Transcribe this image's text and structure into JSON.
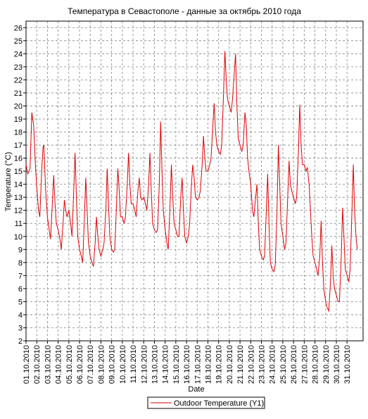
{
  "chart_data": {
    "type": "line",
    "title": "Температура в Севастополе - данные за октябрь 2010 года",
    "xlabel": "Date",
    "ylabel": "Temperature (°C)",
    "ylim": [
      2,
      26.5
    ],
    "xlim_days": [
      0,
      31.5
    ],
    "grid": true,
    "legend_position": "bottom-center",
    "y_ticks": [
      2,
      3,
      4,
      5,
      6,
      7,
      8,
      9,
      10,
      11,
      12,
      13,
      14,
      15,
      16,
      17,
      18,
      19,
      20,
      21,
      22,
      23,
      24,
      25,
      26
    ],
    "x_tick_labels": [
      "01.10.2010",
      "02.10.2010",
      "03.10.2010",
      "04.10.2010",
      "05.10.2010",
      "06.10.2010",
      "07.10.2010",
      "08.10.2010",
      "09.10.2010",
      "10.10.2010",
      "11.10.2010",
      "12.10.2010",
      "13.10.2010",
      "14.10.2010",
      "15.10.2010",
      "16.10.2010",
      "17.10.2010",
      "18.10.2010",
      "19.10.2010",
      "20.10.2010",
      "21.10.2010",
      "22.10.2010",
      "23.10.2010",
      "24.10.2010",
      "25.10.2010",
      "26.10.2010",
      "27.10.2010",
      "28.10.2010",
      "29.10.2010",
      "30.10.2010",
      "31.10.2010"
    ],
    "series": [
      {
        "name": "Outdoor Temperature (Y1)",
        "color": "#e00000",
        "points": [
          [
            "01.10.2010 00:00",
            15.5
          ],
          [
            "01.10.2010 04:00",
            14.8
          ],
          [
            "01.10.2010 09:00",
            15.2
          ],
          [
            "01.10.2010 13:00",
            19.5
          ],
          [
            "01.10.2010 17:00",
            18.5
          ],
          [
            "01.10.2010 21:00",
            15.5
          ],
          [
            "02.10.2010 00:00",
            13.8
          ],
          [
            "02.10.2010 04:00",
            12.0
          ],
          [
            "02.10.2010 07:00",
            11.5
          ],
          [
            "02.10.2010 11:00",
            15.0
          ],
          [
            "02.10.2010 14:00",
            16.8
          ],
          [
            "02.10.2010 16:00",
            17.0
          ],
          [
            "02.10.2010 20:00",
            13.5
          ],
          [
            "03.10.2010 00:00",
            11.5
          ],
          [
            "03.10.2010 04:00",
            10.5
          ],
          [
            "03.10.2010 07:00",
            9.8
          ],
          [
            "03.10.2010 11:00",
            12.5
          ],
          [
            "03.10.2010 14:00",
            14.7
          ],
          [
            "03.10.2010 17:00",
            12.5
          ],
          [
            "03.10.2010 20:00",
            11.0
          ],
          [
            "04.10.2010 00:00",
            10.5
          ],
          [
            "04.10.2010 04:00",
            9.8
          ],
          [
            "04.10.2010 07:00",
            9.0
          ],
          [
            "04.10.2010 11:00",
            11.0
          ],
          [
            "04.10.2010 14:00",
            12.8
          ],
          [
            "04.10.2010 17:00",
            12.0
          ],
          [
            "04.10.2010 20:00",
            11.5
          ],
          [
            "05.10.2010 00:00",
            12.0
          ],
          [
            "05.10.2010 04:00",
            11.0
          ],
          [
            "05.10.2010 07:00",
            10.0
          ],
          [
            "05.10.2010 11:00",
            13.5
          ],
          [
            "05.10.2010 14:00",
            16.4
          ],
          [
            "05.10.2010 17:00",
            13.0
          ],
          [
            "05.10.2010 20:00",
            10.0
          ],
          [
            "06.10.2010 00:00",
            9.0
          ],
          [
            "06.10.2010 04:00",
            8.5
          ],
          [
            "06.10.2010 07:00",
            8.0
          ],
          [
            "06.10.2010 11:00",
            11.5
          ],
          [
            "06.10.2010 14:00",
            14.5
          ],
          [
            "06.10.2010 17:00",
            12.0
          ],
          [
            "06.10.2010 20:00",
            9.5
          ],
          [
            "07.10.2010 00:00",
            8.5
          ],
          [
            "07.10.2010 04:00",
            8.0
          ],
          [
            "07.10.2010 07:00",
            7.7
          ],
          [
            "07.10.2010 11:00",
            9.5
          ],
          [
            "07.10.2010 14:00",
            11.5
          ],
          [
            "07.10.2010 17:00",
            10.0
          ],
          [
            "07.10.2010 20:00",
            9.0
          ],
          [
            "08.10.2010 00:00",
            8.5
          ],
          [
            "08.10.2010 04:00",
            9.0
          ],
          [
            "08.10.2010 07:00",
            9.5
          ],
          [
            "08.10.2010 11:00",
            12.0
          ],
          [
            "08.10.2010 14:00",
            15.2
          ],
          [
            "08.10.2010 17:00",
            12.5
          ],
          [
            "08.10.2010 20:00",
            10.0
          ],
          [
            "09.10.2010 00:00",
            9.0
          ],
          [
            "09.10.2010 04:00",
            8.8
          ],
          [
            "09.10.2010 07:00",
            9.0
          ],
          [
            "09.10.2010 11:00",
            12.5
          ],
          [
            "09.10.2010 14:00",
            15.2
          ],
          [
            "09.10.2010 17:00",
            13.5
          ],
          [
            "09.10.2010 20:00",
            11.5
          ],
          [
            "10.10.2010 00:00",
            11.5
          ],
          [
            "10.10.2010 04:00",
            11.0
          ],
          [
            "10.10.2010 07:00",
            11.5
          ],
          [
            "10.10.2010 11:00",
            14.0
          ],
          [
            "10.10.2010 14:00",
            16.4
          ],
          [
            "10.10.2010 17:00",
            14.0
          ],
          [
            "10.10.2010 20:00",
            12.5
          ],
          [
            "11.10.2010 00:00",
            12.5
          ],
          [
            "11.10.2010 04:00",
            12.0
          ],
          [
            "11.10.2010 07:00",
            11.5
          ],
          [
            "11.10.2010 11:00",
            13.5
          ],
          [
            "11.10.2010 14:00",
            14.5
          ],
          [
            "11.10.2010 17:00",
            13.0
          ],
          [
            "11.10.2010 20:00",
            12.8
          ],
          [
            "12.10.2010 00:00",
            13.0
          ],
          [
            "12.10.2010 04:00",
            12.5
          ],
          [
            "12.10.2010 07:00",
            12.0
          ],
          [
            "12.10.2010 11:00",
            14.0
          ],
          [
            "12.10.2010 14:00",
            16.4
          ],
          [
            "12.10.2010 17:00",
            13.5
          ],
          [
            "12.10.2010 20:00",
            11.0
          ],
          [
            "13.10.2010 00:00",
            10.5
          ],
          [
            "13.10.2010 04:00",
            10.3
          ],
          [
            "13.10.2010 07:00",
            10.5
          ],
          [
            "13.10.2010 11:00",
            14.0
          ],
          [
            "13.10.2010 14:00",
            18.8
          ],
          [
            "13.10.2010 17:00",
            15.0
          ],
          [
            "13.10.2010 20:00",
            12.0
          ],
          [
            "14.10.2010 00:00",
            10.5
          ],
          [
            "14.10.2010 04:00",
            9.5
          ],
          [
            "14.10.2010 07:00",
            9.0
          ],
          [
            "14.10.2010 11:00",
            12.5
          ],
          [
            "14.10.2010 14:00",
            15.5
          ],
          [
            "14.10.2010 17:00",
            13.0
          ],
          [
            "14.10.2010 20:00",
            11.0
          ],
          [
            "15.10.2010 00:00",
            10.5
          ],
          [
            "15.10.2010 04:00",
            10.0
          ],
          [
            "15.10.2010 07:00",
            10.0
          ],
          [
            "15.10.2010 11:00",
            13.0
          ],
          [
            "15.10.2010 14:00",
            14.5
          ],
          [
            "15.10.2010 17:00",
            12.0
          ],
          [
            "15.10.2010 20:00",
            10.0
          ],
          [
            "16.10.2010 00:00",
            9.5
          ],
          [
            "16.10.2010 04:00",
            10.0
          ],
          [
            "16.10.2010 07:00",
            11.0
          ],
          [
            "16.10.2010 11:00",
            14.0
          ],
          [
            "16.10.2010 14:00",
            15.5
          ],
          [
            "16.10.2010 17:00",
            14.5
          ],
          [
            "16.10.2010 20:00",
            13.0
          ],
          [
            "17.10.2010 00:00",
            12.8
          ],
          [
            "17.10.2010 04:00",
            13.0
          ],
          [
            "17.10.2010 07:00",
            13.5
          ],
          [
            "17.10.2010 11:00",
            15.5
          ],
          [
            "17.10.2010 14:00",
            17.7
          ],
          [
            "17.10.2010 17:00",
            16.0
          ],
          [
            "17.10.2010 20:00",
            15.0
          ],
          [
            "18.10.2010 00:00",
            15.0
          ],
          [
            "18.10.2010 04:00",
            15.5
          ],
          [
            "18.10.2010 07:00",
            16.0
          ],
          [
            "18.10.2010 11:00",
            18.5
          ],
          [
            "18.10.2010 14:00",
            20.2
          ],
          [
            "18.10.2010 17:00",
            18.0
          ],
          [
            "18.10.2010 20:00",
            17.0
          ],
          [
            "19.10.2010 00:00",
            16.5
          ],
          [
            "19.10.2010 04:00",
            16.3
          ],
          [
            "19.10.2010 07:00",
            17.0
          ],
          [
            "19.10.2010 11:00",
            21.0
          ],
          [
            "19.10.2010 14:00",
            24.2
          ],
          [
            "19.10.2010 17:00",
            22.0
          ],
          [
            "19.10.2010 20:00",
            20.5
          ],
          [
            "20.10.2010 00:00",
            20.0
          ],
          [
            "20.10.2010 04:00",
            19.5
          ],
          [
            "20.10.2010 07:00",
            20.5
          ],
          [
            "20.10.2010 11:00",
            22.5
          ],
          [
            "20.10.2010 14:00",
            24.0
          ],
          [
            "20.10.2010 17:00",
            20.0
          ],
          [
            "20.10.2010 20:00",
            17.5
          ],
          [
            "21.10.2010 00:00",
            17.0
          ],
          [
            "21.10.2010 04:00",
            16.5
          ],
          [
            "21.10.2010 07:00",
            17.0
          ],
          [
            "21.10.2010 11:00",
            19.5
          ],
          [
            "21.10.2010 14:00",
            18.5
          ],
          [
            "21.10.2010 17:00",
            16.0
          ],
          [
            "21.10.2010 20:00",
            15.0
          ],
          [
            "22.10.2010 00:00",
            14.0
          ],
          [
            "22.10.2010 04:00",
            12.0
          ],
          [
            "22.10.2010 07:00",
            11.5
          ],
          [
            "22.10.2010 11:00",
            13.0
          ],
          [
            "22.10.2010 14:00",
            14.0
          ],
          [
            "22.10.2010 17:00",
            11.0
          ],
          [
            "22.10.2010 20:00",
            9.0
          ],
          [
            "23.10.2010 00:00",
            8.5
          ],
          [
            "23.10.2010 04:00",
            8.2
          ],
          [
            "23.10.2010 07:00",
            8.5
          ],
          [
            "23.10.2010 11:00",
            12.0
          ],
          [
            "23.10.2010 14:00",
            14.8
          ],
          [
            "23.10.2010 17:00",
            11.0
          ],
          [
            "23.10.2010 20:00",
            8.0
          ],
          [
            "24.10.2010 00:00",
            7.5
          ],
          [
            "24.10.2010 04:00",
            7.3
          ],
          [
            "24.10.2010 07:00",
            7.8
          ],
          [
            "24.10.2010 11:00",
            12.0
          ],
          [
            "24.10.2010 14:00",
            17.0
          ],
          [
            "24.10.2010 17:00",
            14.0
          ],
          [
            "24.10.2010 20:00",
            11.0
          ],
          [
            "25.10.2010 00:00",
            10.0
          ],
          [
            "25.10.2010 04:00",
            9.0
          ],
          [
            "25.10.2010 07:00",
            9.5
          ],
          [
            "25.10.2010 11:00",
            13.0
          ],
          [
            "25.10.2010 14:00",
            15.8
          ],
          [
            "25.10.2010 17:00",
            14.0
          ],
          [
            "25.10.2010 20:00",
            13.5
          ],
          [
            "26.10.2010 00:00",
            13.0
          ],
          [
            "26.10.2010 04:00",
            12.5
          ],
          [
            "26.10.2010 07:00",
            13.0
          ],
          [
            "26.10.2010 11:00",
            16.5
          ],
          [
            "26.10.2010 14:00",
            20.1
          ],
          [
            "26.10.2010 17:00",
            17.0
          ],
          [
            "26.10.2010 20:00",
            15.5
          ],
          [
            "27.10.2010 00:00",
            15.5
          ],
          [
            "27.10.2010 04:00",
            15.0
          ],
          [
            "27.10.2010 07:00",
            15.3
          ],
          [
            "27.10.2010 11:00",
            14.0
          ],
          [
            "27.10.2010 14:00",
            12.0
          ],
          [
            "27.10.2010 17:00",
            10.0
          ],
          [
            "27.10.2010 20:00",
            8.5
          ],
          [
            "28.10.2010 00:00",
            8.0
          ],
          [
            "28.10.2010 04:00",
            7.5
          ],
          [
            "28.10.2010 07:00",
            7.0
          ],
          [
            "28.10.2010 11:00",
            8.5
          ],
          [
            "28.10.2010 14:00",
            11.2
          ],
          [
            "28.10.2010 17:00",
            8.0
          ],
          [
            "28.10.2010 20:00",
            6.0
          ],
          [
            "29.10.2010 00:00",
            5.0
          ],
          [
            "29.10.2010 04:00",
            4.5
          ],
          [
            "29.10.2010 07:00",
            4.3
          ],
          [
            "29.10.2010 11:00",
            6.5
          ],
          [
            "29.10.2010 14:00",
            9.3
          ],
          [
            "29.10.2010 17:00",
            7.0
          ],
          [
            "29.10.2010 20:00",
            6.0
          ],
          [
            "30.10.2010 00:00",
            5.5
          ],
          [
            "30.10.2010 04:00",
            5.0
          ],
          [
            "30.10.2010 07:00",
            5.0
          ],
          [
            "30.10.2010 11:00",
            8.5
          ],
          [
            "30.10.2010 14:00",
            12.2
          ],
          [
            "30.10.2010 17:00",
            10.0
          ],
          [
            "30.10.2010 20:00",
            7.5
          ],
          [
            "31.10.2010 00:00",
            7.0
          ],
          [
            "31.10.2010 04:00",
            6.5
          ],
          [
            "31.10.2010 07:00",
            7.5
          ],
          [
            "31.10.2010 11:00",
            12.0
          ],
          [
            "31.10.2010 14:00",
            15.5
          ],
          [
            "31.10.2010 17:00",
            12.0
          ],
          [
            "31.10.2010 20:00",
            10.0
          ],
          [
            "31.10.2010 23:00",
            9.0
          ]
        ]
      }
    ]
  }
}
